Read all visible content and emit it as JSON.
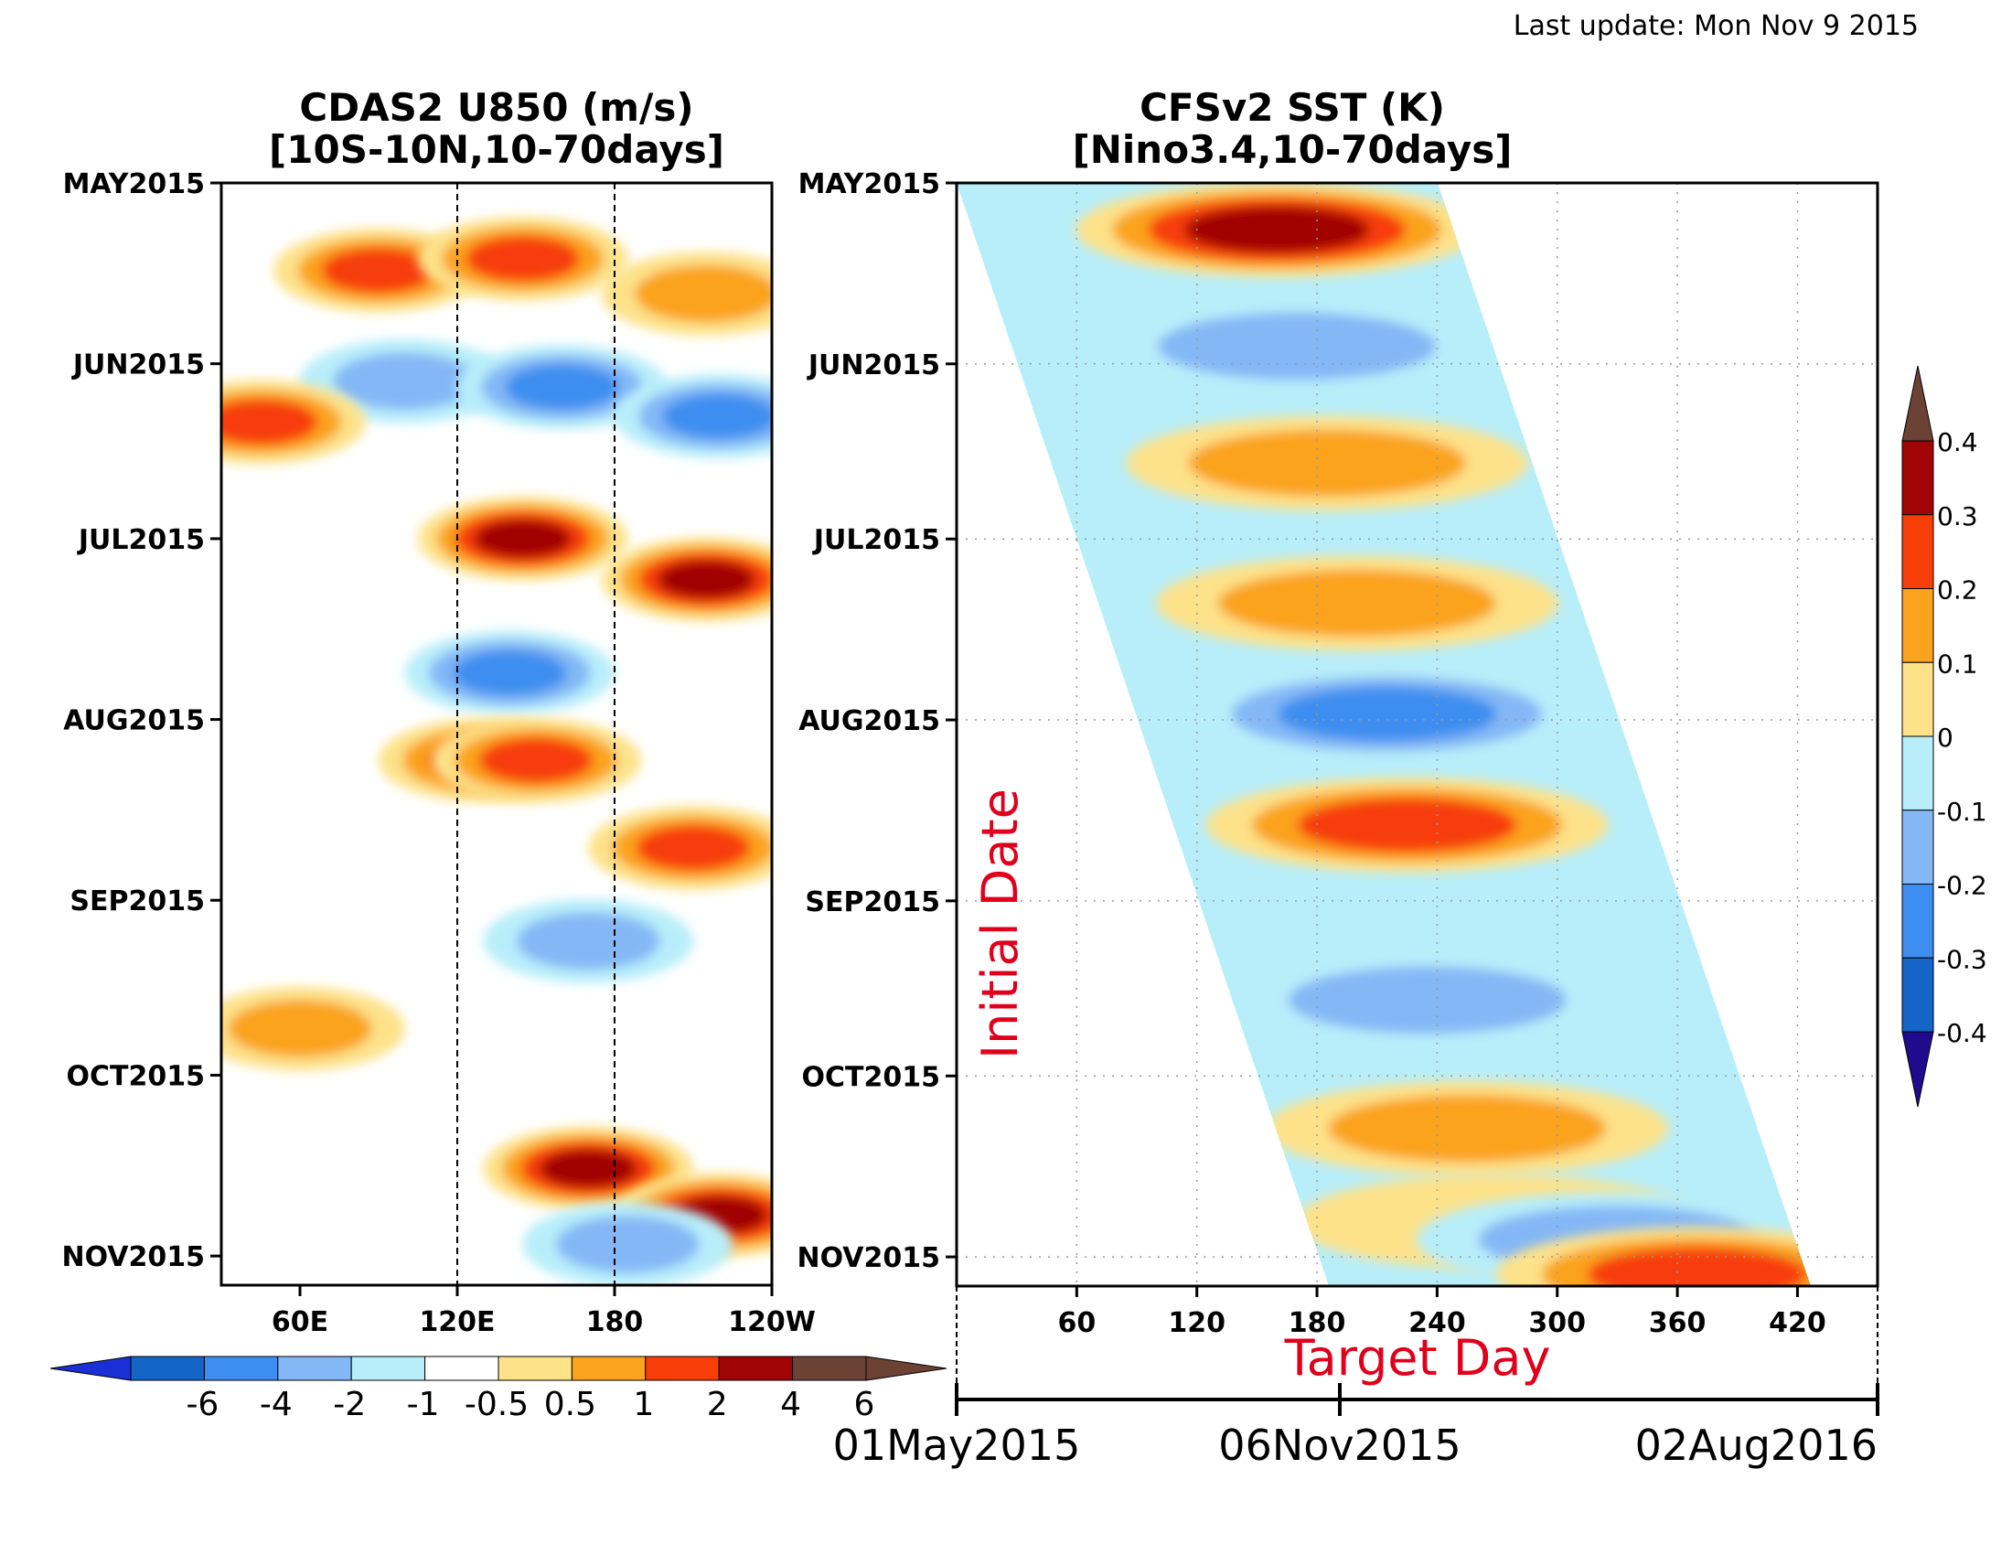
{
  "last_update": "Last update: Mon Nov 9 2015",
  "left_panel": {
    "title": "CDAS2 U850 (m/s)",
    "subtitle": "[10S-10N,10-70days]"
  },
  "right_panel": {
    "title": "CFSv2 SST (K)",
    "subtitle": "[Nino3.4,10-70days]",
    "ylabel": "Initial Date",
    "xlabel": "Target Day",
    "date_axis": [
      "01May2015",
      "06Nov2015",
      "02Aug2016"
    ]
  },
  "chart_data": [
    {
      "type": "heatmap",
      "title": "CDAS2 U850 (m/s)",
      "subtitle": "[10S-10N,10-70days]",
      "y_ticks": [
        "MAY2015",
        "JUN2015",
        "JUL2015",
        "AUG2015",
        "SEP2015",
        "OCT2015",
        "NOV2015"
      ],
      "x_ticks": [
        "60E",
        "120E",
        "180",
        "120W"
      ],
      "x_ticks_lon": [
        60,
        120,
        180,
        240
      ],
      "xlim_lon": [
        30,
        240
      ],
      "ylim": [
        "2015-05-01",
        "2015-11-06"
      ],
      "reference_lines_lon": [
        120,
        180
      ],
      "colorbar": {
        "labels": [
          "-6",
          "-4",
          "-2",
          "-1",
          "-0.5",
          "0.5",
          "1",
          "2",
          "4",
          "6"
        ],
        "levels": [
          -6,
          -4,
          -2,
          -1,
          -0.5,
          0.5,
          1,
          2,
          4,
          6
        ],
        "colors": [
          "#1a2fd6",
          "#1565c8",
          "#3d8ef0",
          "#84b7f6",
          "#b8eefa",
          "#ffffff",
          "#fde28a",
          "#fba31e",
          "#f73e08",
          "#a10404",
          "#6b4234",
          "#2a109a"
        ]
      },
      "anomalies": [
        {
          "lon": 90,
          "date": "2015-05-16",
          "value": 3
        },
        {
          "lon": 145,
          "date": "2015-05-14",
          "value": 3
        },
        {
          "lon": 215,
          "date": "2015-05-20",
          "value": 2
        },
        {
          "lon": 100,
          "date": "2015-06-04",
          "value": -2
        },
        {
          "lon": 160,
          "date": "2015-06-05",
          "value": -3
        },
        {
          "lon": 220,
          "date": "2015-06-10",
          "value": -3
        },
        {
          "lon": 45,
          "date": "2015-06-11",
          "value": 3
        },
        {
          "lon": 145,
          "date": "2015-07-01",
          "value": 5
        },
        {
          "lon": 215,
          "date": "2015-07-08",
          "value": 5
        },
        {
          "lon": 140,
          "date": "2015-07-24",
          "value": -3
        },
        {
          "lon": 130,
          "date": "2015-08-08",
          "value": 3
        },
        {
          "lon": 150,
          "date": "2015-08-08",
          "value": 3
        },
        {
          "lon": 210,
          "date": "2015-08-23",
          "value": 3
        },
        {
          "lon": 170,
          "date": "2015-09-08",
          "value": -2
        },
        {
          "lon": 60,
          "date": "2015-09-23",
          "value": 2
        },
        {
          "lon": 170,
          "date": "2015-10-17",
          "value": 5
        },
        {
          "lon": 220,
          "date": "2015-10-25",
          "value": 5
        },
        {
          "lon": 185,
          "date": "2015-10-30",
          "value": -2
        }
      ]
    },
    {
      "type": "heatmap",
      "title": "CFSv2 SST (K)",
      "subtitle": "[Nino3.4,10-70days]",
      "xlabel": "Target Day",
      "ylabel": "Initial Date",
      "y_ticks": [
        "MAY2015",
        "JUN2015",
        "JUL2015",
        "AUG2015",
        "SEP2015",
        "OCT2015",
        "NOV2015"
      ],
      "x_ticks": [
        "60",
        "120",
        "180",
        "240",
        "300",
        "360",
        "420"
      ],
      "xlim": [
        0,
        460
      ],
      "ylim": [
        "2015-05-01",
        "2015-11-06"
      ],
      "colorbar": {
        "labels": [
          "-0.4",
          "-0.3",
          "-0.2",
          "-0.1",
          "0",
          "0.1",
          "0.2",
          "0.3",
          "0.4"
        ],
        "levels": [
          -0.4,
          -0.3,
          -0.2,
          -0.1,
          0,
          0.1,
          0.2,
          0.3,
          0.4
        ],
        "colors": [
          "#200b8f",
          "#1565c8",
          "#3d8ef0",
          "#84b7f6",
          "#b8eefa",
          "#fde28a",
          "#fba31e",
          "#f73e08",
          "#a10404",
          "#6b4234"
        ]
      },
      "anomalies": [
        {
          "day": 160,
          "date": "2015-05-09",
          "value": 0.35
        },
        {
          "day": 170,
          "date": "2015-05-29",
          "value": -0.2
        },
        {
          "day": 185,
          "date": "2015-06-18",
          "value": 0.2
        },
        {
          "day": 200,
          "date": "2015-07-12",
          "value": 0.15
        },
        {
          "day": 215,
          "date": "2015-07-31",
          "value": -0.3
        },
        {
          "day": 225,
          "date": "2015-08-19",
          "value": 0.25
        },
        {
          "day": 235,
          "date": "2015-09-18",
          "value": -0.15
        },
        {
          "day": 255,
          "date": "2015-10-10",
          "value": 0.15
        },
        {
          "day": 270,
          "date": "2015-10-26",
          "value": 0.05
        },
        {
          "day": 330,
          "date": "2015-10-29",
          "value": -0.15
        },
        {
          "day": 370,
          "date": "2015-11-04",
          "value": 0.25
        }
      ]
    }
  ]
}
